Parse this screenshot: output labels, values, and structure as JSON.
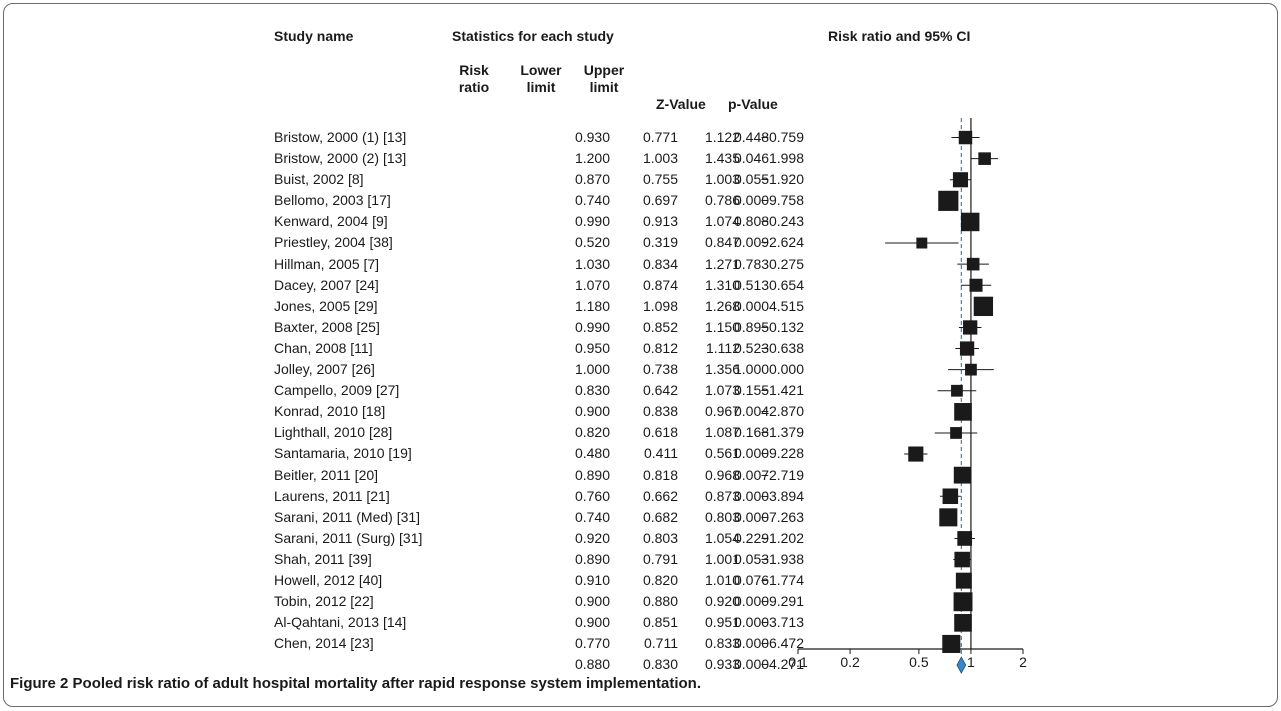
{
  "headers": {
    "study_name": "Study name",
    "stats_group": "Statistics for each study",
    "plot_title": "Risk ratio and 95% CI",
    "risk_ratio": [
      "Risk",
      "ratio"
    ],
    "lower_limit": [
      "Lower",
      "limit"
    ],
    "upper_limit": [
      "Upper",
      "limit"
    ],
    "z_value": "Z-Value",
    "p_value": "p-Value"
  },
  "rows": [
    {
      "name": "Bristow, 2000 (1) [13]",
      "rr": "0.930",
      "ll": "0.771",
      "ul": "1.122",
      "z": "−0.759",
      "p": "0.448"
    },
    {
      "name": "Bristow, 2000 (2) [13]",
      "rr": "1.200",
      "ll": "1.003",
      "ul": "1.435",
      "z": "1.998",
      "p": "0.046"
    },
    {
      "name": "Buist, 2002 [8]",
      "rr": "0.870",
      "ll": "0.755",
      "ul": "1.003",
      "z": "−1.920",
      "p": "0.055"
    },
    {
      "name": "Bellomo, 2003 [17]",
      "rr": "0.740",
      "ll": "0.697",
      "ul": "0.786",
      "z": "−9.758",
      "p": "0.000"
    },
    {
      "name": "Kenward, 2004 [9]",
      "rr": "0.990",
      "ll": "0.913",
      "ul": "1.074",
      "z": "−0.243",
      "p": "0.808"
    },
    {
      "name": "Priestley, 2004 [38]",
      "rr": "0.520",
      "ll": "0.319",
      "ul": "0.847",
      "z": "−2.624",
      "p": "0.009"
    },
    {
      "name": "Hillman, 2005 [7]",
      "rr": "1.030",
      "ll": "0.834",
      "ul": "1.271",
      "z": "0.275",
      "p": "0.783"
    },
    {
      "name": "Dacey, 2007 [24]",
      "rr": "1.070",
      "ll": "0.874",
      "ul": "1.310",
      "z": "0.654",
      "p": "0.513"
    },
    {
      "name": "Jones, 2005 [29]",
      "rr": "1.180",
      "ll": "1.098",
      "ul": "1.268",
      "z": "4.515",
      "p": "0.000"
    },
    {
      "name": "Baxter, 2008 [25]",
      "rr": "0.990",
      "ll": "0.852",
      "ul": "1.150",
      "z": "−0.132",
      "p": "0.895"
    },
    {
      "name": "Chan, 2008 [11]",
      "rr": "0.950",
      "ll": "0.812",
      "ul": "1.112",
      "z": "−0.638",
      "p": "0.523"
    },
    {
      "name": "Jolley, 2007 [26]",
      "rr": "1.000",
      "ll": "0.738",
      "ul": "1.356",
      "z": "0.000",
      "p": "1.000"
    },
    {
      "name": "Campello, 2009 [27]",
      "rr": "0.830",
      "ll": "0.642",
      "ul": "1.073",
      "z": "−1.421",
      "p": "0.155"
    },
    {
      "name": "Konrad, 2010 [18]",
      "rr": "0.900",
      "ll": "0.838",
      "ul": "0.967",
      "z": "−2.870",
      "p": "0.004"
    },
    {
      "name": "Lighthall, 2010 [28]",
      "rr": "0.820",
      "ll": "0.618",
      "ul": "1.087",
      "z": "−1.379",
      "p": "0.168"
    },
    {
      "name": "Santamaria, 2010 [19]",
      "rr": "0.480",
      "ll": "0.411",
      "ul": "0.561",
      "z": "−9.228",
      "p": "0.000"
    },
    {
      "name": "Beitler, 2011 [20]",
      "rr": "0.890",
      "ll": "0.818",
      "ul": "0.968",
      "z": "−2.719",
      "p": "0.007"
    },
    {
      "name": "Laurens, 2011 [21]",
      "rr": "0.760",
      "ll": "0.662",
      "ul": "0.873",
      "z": "−3.894",
      "p": "0.000"
    },
    {
      "name": "Sarani, 2011 (Med) [31]",
      "rr": "0.740",
      "ll": "0.682",
      "ul": "0.803",
      "z": "−7.263",
      "p": "0.000"
    },
    {
      "name": "Sarani, 2011 (Surg) [31]",
      "rr": "0.920",
      "ll": "0.803",
      "ul": "1.054",
      "z": "−1.202",
      "p": "0.229"
    },
    {
      "name": "Shah, 2011 [39]",
      "rr": "0.890",
      "ll": "0.791",
      "ul": "1.001",
      "z": "−1.938",
      "p": "0.053"
    },
    {
      "name": "Howell, 2012 [40]",
      "rr": "0.910",
      "ll": "0.820",
      "ul": "1.010",
      "z": "−1.774",
      "p": "0.076"
    },
    {
      "name": "Tobin, 2012 [22]",
      "rr": "0.900",
      "ll": "0.880",
      "ul": "0.920",
      "z": "−9.291",
      "p": "0.000"
    },
    {
      "name": "Al-Qahtani, 2013 [14]",
      "rr": "0.900",
      "ll": "0.851",
      "ul": "0.951",
      "z": "−3.713",
      "p": "0.000"
    },
    {
      "name": "Chen, 2014 [23]",
      "rr": "0.770",
      "ll": "0.711",
      "ul": "0.833",
      "z": "−6.472",
      "p": "0.000"
    }
  ],
  "pooled": {
    "name": "",
    "rr": "0.880",
    "ll": "0.830",
    "ul": "0.933",
    "z": "−4.271",
    "p": "0.000"
  },
  "caption": {
    "label": "Figure 2",
    "text": "Pooled risk ratio of adult hospital mortality after rapid response system implementation."
  },
  "chart_data": {
    "type": "forest",
    "scale": "log",
    "xlim": [
      0.1,
      2
    ],
    "x_ticks": [
      {
        "value": 0.1,
        "label": "0.1"
      },
      {
        "value": 0.2,
        "label": "0.2"
      },
      {
        "value": 0.5,
        "label": "0.5"
      },
      {
        "value": 1,
        "label": "1"
      },
      {
        "value": 2,
        "label": "2"
      }
    ],
    "title": "Risk ratio and 95% CI",
    "reference_line": 1,
    "pooled_estimate_line": 0.88,
    "colors": {
      "marker": "#1a1a1a",
      "diamond": "#3b87c4",
      "dashed_line": "#3b87c4"
    },
    "studies": [
      {
        "rr": 0.93,
        "ll": 0.771,
        "ul": 1.122,
        "weight": 3.2
      },
      {
        "rr": 1.2,
        "ll": 1.003,
        "ul": 1.435,
        "weight": 3.0
      },
      {
        "rr": 0.87,
        "ll": 0.755,
        "ul": 1.003,
        "weight": 3.6
      },
      {
        "rr": 0.74,
        "ll": 0.697,
        "ul": 0.786,
        "weight": 4.8
      },
      {
        "rr": 0.99,
        "ll": 0.913,
        "ul": 1.074,
        "weight": 4.4
      },
      {
        "rr": 0.52,
        "ll": 0.319,
        "ul": 0.847,
        "weight": 2.6
      },
      {
        "rr": 1.03,
        "ll": 0.834,
        "ul": 1.271,
        "weight": 3.0
      },
      {
        "rr": 1.07,
        "ll": 0.874,
        "ul": 1.31,
        "weight": 3.1
      },
      {
        "rr": 1.18,
        "ll": 1.098,
        "ul": 1.268,
        "weight": 4.6
      },
      {
        "rr": 0.99,
        "ll": 0.852,
        "ul": 1.15,
        "weight": 3.4
      },
      {
        "rr": 0.95,
        "ll": 0.812,
        "ul": 1.112,
        "weight": 3.4
      },
      {
        "rr": 1.0,
        "ll": 0.738,
        "ul": 1.356,
        "weight": 2.8
      },
      {
        "rr": 0.83,
        "ll": 0.642,
        "ul": 1.073,
        "weight": 2.8
      },
      {
        "rr": 0.9,
        "ll": 0.838,
        "ul": 0.967,
        "weight": 4.2
      },
      {
        "rr": 0.82,
        "ll": 0.618,
        "ul": 1.087,
        "weight": 2.8
      },
      {
        "rr": 0.48,
        "ll": 0.411,
        "ul": 0.561,
        "weight": 3.6
      },
      {
        "rr": 0.89,
        "ll": 0.818,
        "ul": 0.968,
        "weight": 4.0
      },
      {
        "rr": 0.76,
        "ll": 0.662,
        "ul": 0.873,
        "weight": 3.7
      },
      {
        "rr": 0.74,
        "ll": 0.682,
        "ul": 0.803,
        "weight": 4.3
      },
      {
        "rr": 0.92,
        "ll": 0.803,
        "ul": 1.054,
        "weight": 3.5
      },
      {
        "rr": 0.89,
        "ll": 0.791,
        "ul": 1.001,
        "weight": 3.7
      },
      {
        "rr": 0.91,
        "ll": 0.82,
        "ul": 1.01,
        "weight": 3.8
      },
      {
        "rr": 0.9,
        "ll": 0.88,
        "ul": 0.92,
        "weight": 4.5
      },
      {
        "rr": 0.9,
        "ll": 0.851,
        "ul": 0.951,
        "weight": 4.2
      },
      {
        "rr": 0.77,
        "ll": 0.711,
        "ul": 0.833,
        "weight": 4.3
      }
    ],
    "pooled": {
      "rr": 0.88,
      "ll": 0.83,
      "ul": 0.933
    }
  }
}
